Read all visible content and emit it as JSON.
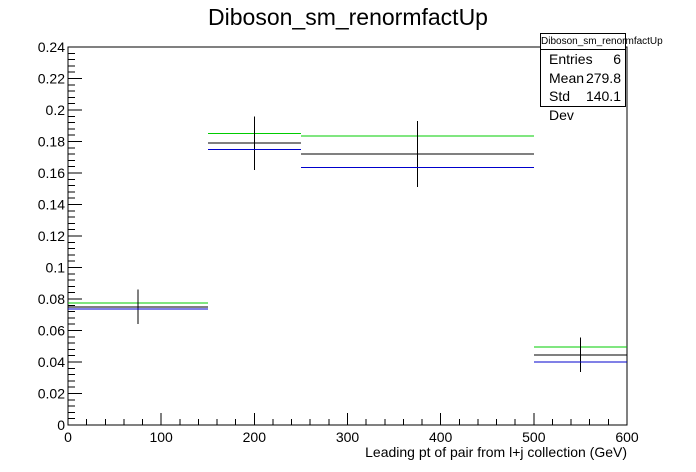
{
  "chart_data": {
    "type": "step-histogram",
    "title": "Diboson_sm_renormfactUp",
    "xlabel": "Leading pt of pair from l+j collection (GeV)",
    "ylabel": "",
    "xlim": [
      0,
      600
    ],
    "ylim": [
      0,
      0.24
    ],
    "x_ticks": [
      "0",
      "100",
      "200",
      "300",
      "400",
      "500",
      "600"
    ],
    "y_ticks": [
      "0",
      "0.02",
      "0.04",
      "0.06",
      "0.08",
      "0.1",
      "0.12",
      "0.14",
      "0.16",
      "0.18",
      "0.2",
      "0.22",
      "0.24"
    ],
    "bins": [
      {
        "low": 0,
        "high": 150,
        "center": 75
      },
      {
        "low": 150,
        "high": 250,
        "center": 200
      },
      {
        "low": 250,
        "high": 500,
        "center": 375
      },
      {
        "low": 500,
        "high": 600,
        "center": 550
      }
    ],
    "series": [
      {
        "color": "#00cc00",
        "values": [
          0.0775,
          0.185,
          0.1835,
          0.0495
        ]
      },
      {
        "color": "#000000",
        "values": [
          0.075,
          0.179,
          0.172,
          0.0445
        ],
        "errors": [
          0.011,
          0.017,
          0.021,
          0.011
        ]
      },
      {
        "color": "#0000cc",
        "values": [
          0.0735,
          0.175,
          0.1635,
          0.04
        ]
      }
    ],
    "stats": {
      "title": "Diboson_sm_renormfactUp",
      "entries_label": "Entries",
      "entries": "6",
      "mean_label": "Mean",
      "mean": "279.8",
      "stddev_label": "Std Dev",
      "stddev": "140.1"
    },
    "grid": false
  }
}
